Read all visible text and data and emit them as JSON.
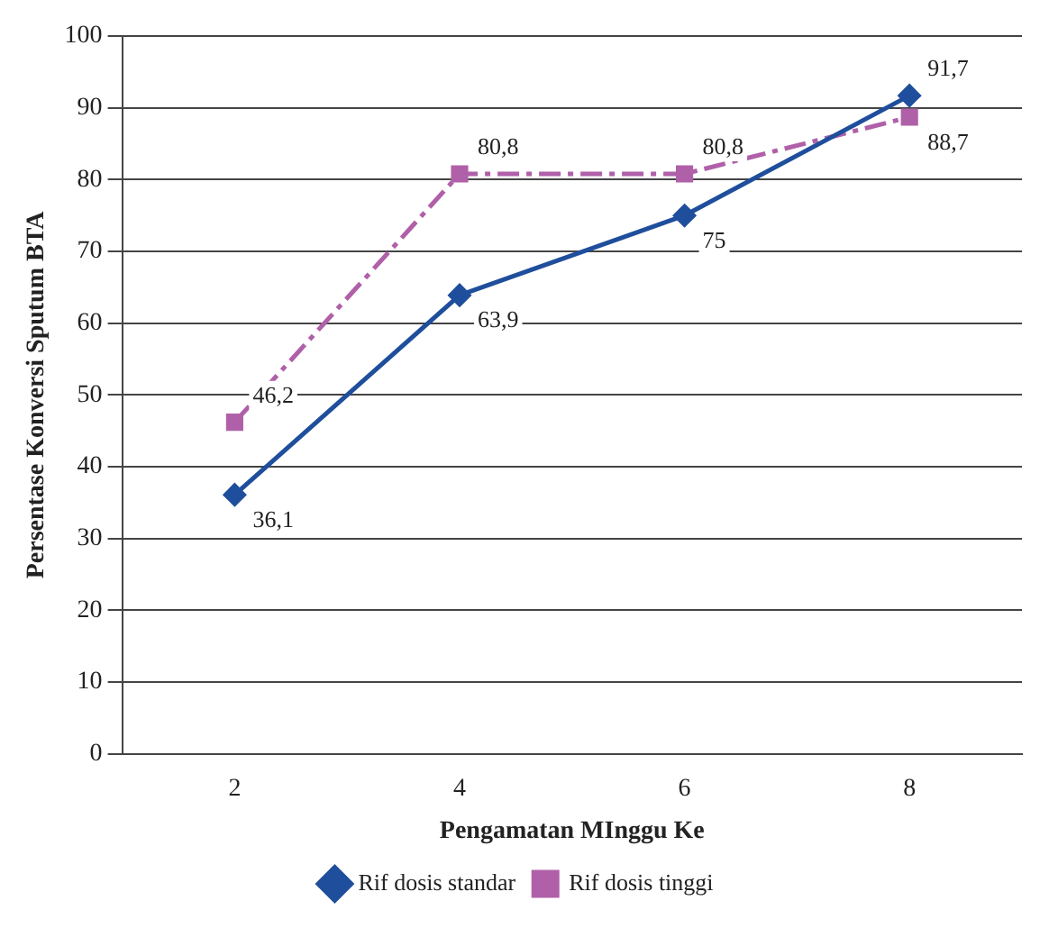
{
  "chart_data": {
    "type": "line",
    "xlabel": "Pengamatan MInggu Ke",
    "ylabel": "Persentase Konversi Sputum BTA",
    "categories": [
      "2",
      "4",
      "6",
      "8"
    ],
    "series": [
      {
        "name": "Rif dosis standar",
        "color": "#1f4e9c",
        "values": [
          36.1,
          63.9,
          75,
          91.7
        ],
        "value_labels": [
          "36,1",
          "63,9",
          "75",
          "91,7"
        ],
        "marker": "diamond",
        "line_style": "solid"
      },
      {
        "name": "Rif dosis tinggi",
        "color": "#b060a8",
        "values": [
          46.2,
          80.8,
          80.8,
          88.7
        ],
        "value_labels": [
          "46,2",
          "80,8",
          "80,8",
          "88,7"
        ],
        "marker": "square",
        "line_style": "dashed"
      }
    ],
    "ylim": [
      0,
      100
    ],
    "yticks": [
      0,
      10,
      20,
      30,
      40,
      50,
      60,
      70,
      80,
      90,
      100
    ],
    "grid": "y",
    "legend": "bottom"
  }
}
